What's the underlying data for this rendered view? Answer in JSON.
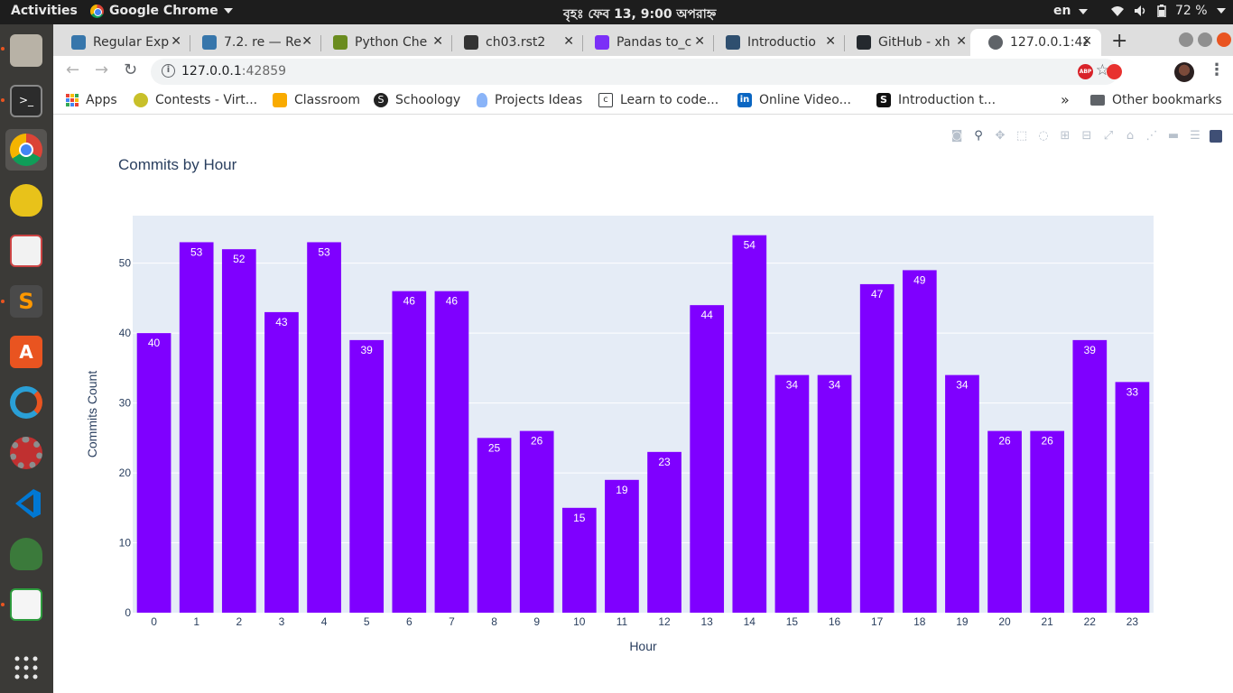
{
  "system": {
    "activities": "Activities",
    "app_name": "Google Chrome",
    "clock": "বৃহঃ ফেব 13,  9:00 অপরাহ্ন",
    "lang": "en",
    "battery": "72 %"
  },
  "tabs": [
    {
      "label": "Regular Exp",
      "color": "#3776ab"
    },
    {
      "label": "7.2. re — Re",
      "color": "#3776ab"
    },
    {
      "label": "Python Che",
      "color": "#6a8c1f"
    },
    {
      "label": "ch03.rst2",
      "color": "#333333"
    },
    {
      "label": "Pandas to_c",
      "color": "#7b2ff7"
    },
    {
      "label": "Introductio",
      "color": "#2f4f6f"
    },
    {
      "label": "GitHub - xh",
      "color": "#24292e"
    },
    {
      "label": "127.0.0.1:42",
      "color": "#5f6368"
    }
  ],
  "address": {
    "host": "127.0.0.1",
    "port": ":42859"
  },
  "bookmarks": [
    {
      "label": "Apps"
    },
    {
      "label": "Contests - Virt...",
      "color": "#c8c02a"
    },
    {
      "label": "Classroom",
      "color": "#f9ab00"
    },
    {
      "label": "Schoology",
      "color": "#222222"
    },
    {
      "label": "Projects Ideas",
      "color": "#8ab4f8"
    },
    {
      "label": "Learn to code...",
      "color": "#3c4043"
    },
    {
      "label": "Online Video...",
      "color": "#0a66c2"
    },
    {
      "label": "Introduction t...",
      "color": "#111111"
    }
  ],
  "bookmarks_overflow": "»",
  "other_bookmarks": "Other bookmarks",
  "chart_data": {
    "type": "bar",
    "title": "Commits by Hour",
    "xlabel": "Hour",
    "ylabel": "Commits Count",
    "categories": [
      "0",
      "1",
      "2",
      "3",
      "4",
      "5",
      "6",
      "7",
      "8",
      "9",
      "10",
      "11",
      "12",
      "13",
      "14",
      "15",
      "16",
      "17",
      "18",
      "19",
      "20",
      "21",
      "22",
      "23"
    ],
    "values": [
      40,
      53,
      52,
      43,
      53,
      39,
      46,
      46,
      25,
      26,
      15,
      19,
      23,
      44,
      54,
      34,
      34,
      47,
      49,
      34,
      26,
      26,
      39,
      33
    ],
    "yticks": [
      0,
      10,
      20,
      30,
      40,
      50
    ],
    "ylim": [
      0,
      56.8
    ],
    "bar_color": "#7f00ff",
    "plot_bg": "#e5ecf6",
    "grid": true
  }
}
